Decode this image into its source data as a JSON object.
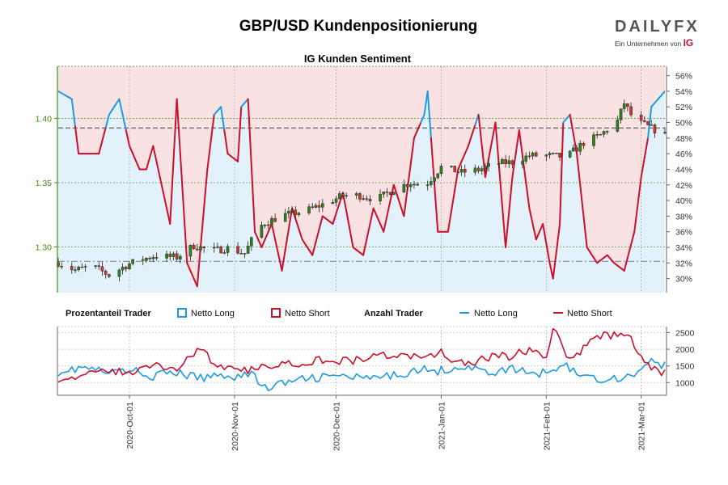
{
  "header": {
    "title": "GBP/USD Kundenpositionierung",
    "logo_text": "DAILYFX",
    "logo_subtitle": "Ein Unternehmen von",
    "logo_brand": "IG"
  },
  "colors": {
    "long": "#1f9ae0",
    "short": "#cc0f2a",
    "long_fill": "#e3f1fb",
    "short_fill": "#f9e2e2",
    "price_axis": "#3b8a16",
    "candle_up": "#2e7d1e",
    "candle_down": "#c0392b"
  },
  "legend": {
    "pct_heading": "Prozentanteil Trader",
    "pct_long": "Netto Long",
    "pct_short": "Netto Short",
    "count_heading": "Anzahl Trader",
    "count_long": "Netto Long",
    "count_short": "Netto Short"
  },
  "chart_data": [
    {
      "type": "candlestick",
      "title": "IG Kunden Sentiment",
      "x_ticks": [
        "2020-Oct-01",
        "2020-Nov-01",
        "2020-Dec-01",
        "2021-Jan-01",
        "2021-Feb-01",
        "2021-Mar-01"
      ],
      "x_range": [
        "2020-09-10",
        "2021-03-08"
      ],
      "y_left": {
        "ticks": [
          "1.30",
          "1.35",
          "1.40"
        ],
        "range": [
          1.2645,
          1.4405
        ]
      },
      "y_right_pct": {
        "ticks": [
          "30%",
          "32%",
          "34%",
          "36%",
          "38%",
          "40%",
          "42%",
          "44%",
          "46%",
          "48%",
          "50%",
          "52%",
          "54%",
          "56%"
        ],
        "range": [
          28.2,
          57.2
        ]
      },
      "reference_lines": {
        "price": 1.3925,
        "pct": 32.2
      },
      "price_keypoints": [
        [
          "2020-09-10",
          1.288
        ],
        [
          "2020-09-15",
          1.282
        ],
        [
          "2020-09-20",
          1.285
        ],
        [
          "2020-09-25",
          1.278
        ],
        [
          "2020-10-01",
          1.287
        ],
        [
          "2020-10-08",
          1.293
        ],
        [
          "2020-10-15",
          1.292
        ],
        [
          "2020-10-20",
          1.301
        ],
        [
          "2020-10-25",
          1.297
        ],
        [
          "2020-10-30",
          1.299
        ],
        [
          "2020-11-04",
          1.295
        ],
        [
          "2020-11-08",
          1.315
        ],
        [
          "2020-11-11",
          1.32
        ],
        [
          "2020-11-16",
          1.325
        ],
        [
          "2020-11-22",
          1.328
        ],
        [
          "2020-11-27",
          1.333
        ],
        [
          "2020-12-03",
          1.34
        ],
        [
          "2020-12-08",
          1.34
        ],
        [
          "2020-12-13",
          1.337
        ],
        [
          "2020-12-18",
          1.345
        ],
        [
          "2020-12-23",
          1.35
        ],
        [
          "2020-12-27",
          1.347
        ],
        [
          "2021-01-01",
          1.362
        ],
        [
          "2021-01-07",
          1.358
        ],
        [
          "2021-01-12",
          1.36
        ],
        [
          "2021-01-18",
          1.365
        ],
        [
          "2021-01-22",
          1.366
        ],
        [
          "2021-01-27",
          1.371
        ],
        [
          "2021-02-02",
          1.371
        ],
        [
          "2021-02-07",
          1.37
        ],
        [
          "2021-02-12",
          1.381
        ],
        [
          "2021-02-17",
          1.387
        ],
        [
          "2021-02-22",
          1.398
        ],
        [
          "2021-02-24",
          1.412
        ],
        [
          "2021-02-27",
          1.398
        ],
        [
          "2021-03-02",
          1.395
        ],
        [
          "2021-03-08",
          1.387
        ]
      ],
      "sentiment_long_pct_keypoints": [
        [
          "2020-09-10",
          54
        ],
        [
          "2020-09-14",
          53
        ],
        [
          "2020-09-16",
          46
        ],
        [
          "2020-09-22",
          46
        ],
        [
          "2020-09-25",
          51
        ],
        [
          "2020-09-28",
          53
        ],
        [
          "2020-09-29",
          51
        ],
        [
          "2020-10-01",
          47
        ],
        [
          "2020-10-04",
          44
        ],
        [
          "2020-10-06",
          44
        ],
        [
          "2020-10-08",
          47
        ],
        [
          "2020-10-13",
          37
        ],
        [
          "2020-10-15",
          53
        ],
        [
          "2020-10-18",
          32
        ],
        [
          "2020-10-21",
          29
        ],
        [
          "2020-10-24",
          44
        ],
        [
          "2020-10-26",
          51
        ],
        [
          "2020-10-28",
          52
        ],
        [
          "2020-10-30",
          46
        ],
        [
          "2020-11-02",
          45
        ],
        [
          "2020-11-03",
          52
        ],
        [
          "2020-11-05",
          53
        ],
        [
          "2020-11-07",
          36
        ],
        [
          "2020-11-09",
          34
        ],
        [
          "2020-11-12",
          37
        ],
        [
          "2020-11-15",
          31
        ],
        [
          "2020-11-18",
          39
        ],
        [
          "2020-11-21",
          35
        ],
        [
          "2020-11-24",
          33
        ],
        [
          "2020-11-27",
          38
        ],
        [
          "2020-11-30",
          37
        ],
        [
          "2020-12-03",
          41
        ],
        [
          "2020-12-06",
          34
        ],
        [
          "2020-12-09",
          33
        ],
        [
          "2020-12-12",
          39
        ],
        [
          "2020-12-15",
          36
        ],
        [
          "2020-12-18",
          42
        ],
        [
          "2020-12-21",
          38
        ],
        [
          "2020-12-24",
          48
        ],
        [
          "2020-12-27",
          51
        ],
        [
          "2020-12-28",
          54
        ],
        [
          "2020-12-31",
          36
        ],
        [
          "2021-01-03",
          36
        ],
        [
          "2021-01-06",
          44
        ],
        [
          "2021-01-09",
          47
        ],
        [
          "2021-01-12",
          51
        ],
        [
          "2021-01-14",
          43
        ],
        [
          "2021-01-17",
          50
        ],
        [
          "2021-01-20",
          34
        ],
        [
          "2021-01-22",
          43
        ],
        [
          "2021-01-24",
          49
        ],
        [
          "2021-01-27",
          39
        ],
        [
          "2021-01-29",
          35
        ],
        [
          "2021-01-31",
          37
        ],
        [
          "2021-02-02",
          32
        ],
        [
          "2021-02-03",
          30
        ],
        [
          "2021-02-05",
          37
        ],
        [
          "2021-02-06",
          50
        ],
        [
          "2021-02-08",
          51
        ],
        [
          "2021-02-10",
          46
        ],
        [
          "2021-02-13",
          34
        ],
        [
          "2021-02-16",
          32
        ],
        [
          "2021-02-19",
          33
        ],
        [
          "2021-02-21",
          32
        ],
        [
          "2021-02-24",
          31
        ],
        [
          "2021-02-27",
          36
        ],
        [
          "2021-03-01",
          43
        ],
        [
          "2021-03-03",
          48
        ],
        [
          "2021-03-04",
          52
        ],
        [
          "2021-03-06",
          53
        ],
        [
          "2021-03-08",
          54
        ]
      ]
    },
    {
      "type": "line",
      "x_ticks": [
        "2020-Oct-01",
        "2020-Nov-01",
        "2020-Dec-01",
        "2021-Jan-01",
        "2021-Feb-01",
        "2021-Mar-01"
      ],
      "y_ticks": [
        "1000",
        "1500",
        "2000",
        "2500"
      ],
      "y_range": [
        620,
        2680
      ],
      "series": [
        {
          "name": "Netto Long",
          "keypoints": [
            [
              "2020-09-10",
              1330
            ],
            [
              "2020-09-18",
              1450
            ],
            [
              "2020-09-25",
              1280
            ],
            [
              "2020-10-01",
              1380
            ],
            [
              "2020-10-08",
              1200
            ],
            [
              "2020-10-15",
              1300
            ],
            [
              "2020-10-22",
              1120
            ],
            [
              "2020-10-28",
              1250
            ],
            [
              "2020-11-02",
              1180
            ],
            [
              "2020-11-06",
              1300
            ],
            [
              "2020-11-10",
              820
            ],
            [
              "2020-11-16",
              1000
            ],
            [
              "2020-11-25",
              1150
            ],
            [
              "2020-12-03",
              1200
            ],
            [
              "2020-12-10",
              1100
            ],
            [
              "2020-12-17",
              1180
            ],
            [
              "2020-12-25",
              1400
            ],
            [
              "2020-12-31",
              1350
            ],
            [
              "2021-01-07",
              1500
            ],
            [
              "2021-01-15",
              1300
            ],
            [
              "2021-01-22",
              1400
            ],
            [
              "2021-01-30",
              1250
            ],
            [
              "2021-02-06",
              1550
            ],
            [
              "2021-02-13",
              1150
            ],
            [
              "2021-02-20",
              1100
            ],
            [
              "2021-02-27",
              1250
            ],
            [
              "2021-03-03",
              1650
            ],
            [
              "2021-03-08",
              1500
            ]
          ]
        },
        {
          "name": "Netto Short",
          "keypoints": [
            [
              "2020-09-10",
              1150
            ],
            [
              "2020-09-18",
              1180
            ],
            [
              "2020-09-25",
              1400
            ],
            [
              "2020-10-01",
              1250
            ],
            [
              "2020-10-08",
              1550
            ],
            [
              "2020-10-15",
              1400
            ],
            [
              "2020-10-21",
              2000
            ],
            [
              "2020-10-28",
              1500
            ],
            [
              "2020-11-02",
              1300
            ],
            [
              "2020-11-07",
              1400
            ],
            [
              "2020-11-12",
              1550
            ],
            [
              "2020-11-20",
              1600
            ],
            [
              "2020-11-28",
              1700
            ],
            [
              "2020-12-06",
              1650
            ],
            [
              "2020-12-13",
              1800
            ],
            [
              "2020-12-20",
              1850
            ],
            [
              "2020-12-27",
              1700
            ],
            [
              "2021-01-01",
              1900
            ],
            [
              "2021-01-08",
              1500
            ],
            [
              "2021-01-15",
              1750
            ],
            [
              "2021-01-22",
              1800
            ],
            [
              "2021-01-27",
              2000
            ],
            [
              "2021-02-01",
              1700
            ],
            [
              "2021-02-03",
              2600
            ],
            [
              "2021-02-08",
              1700
            ],
            [
              "2021-02-14",
              2200
            ],
            [
              "2021-02-18",
              2450
            ],
            [
              "2021-02-26",
              2350
            ],
            [
              "2021-03-01",
              1750
            ],
            [
              "2021-03-04",
              1400
            ],
            [
              "2021-03-08",
              1300
            ]
          ]
        }
      ]
    }
  ]
}
